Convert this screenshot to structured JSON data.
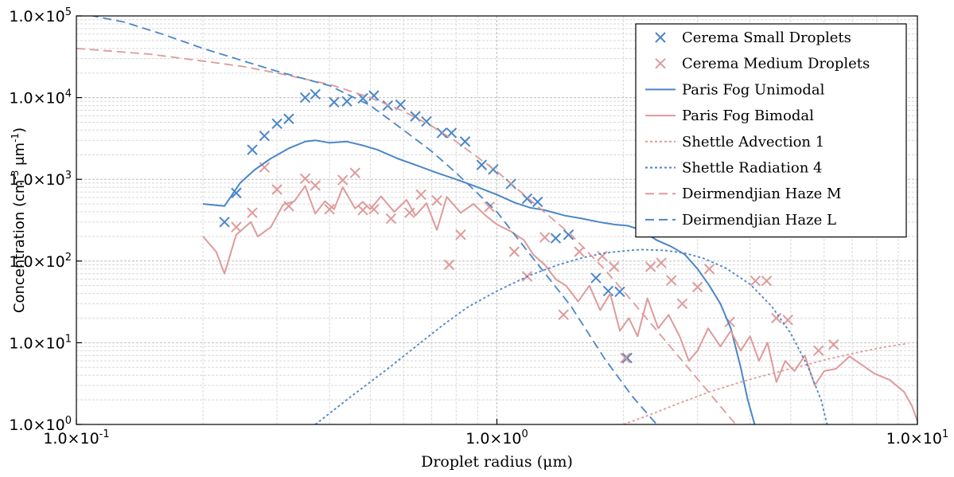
{
  "chart_data": {
    "type": "line",
    "xlabel": "Droplet radius (μm)",
    "ylabel_parts": [
      "Concentration (cm",
      "-3",
      " μm",
      "-1",
      ")"
    ],
    "x_scale": "log",
    "y_scale": "log",
    "xlim": [
      0.1,
      10
    ],
    "ylim": [
      1,
      100000
    ],
    "grid": true,
    "legend_position": "top-right",
    "x_ticks": [
      {
        "value": 0.1,
        "mantissa": "1.0×10",
        "exp": "-1"
      },
      {
        "value": 1,
        "mantissa": "1.0×10",
        "exp": "0"
      },
      {
        "value": 10,
        "mantissa": "1.0×10",
        "exp": "1"
      }
    ],
    "y_ticks": [
      {
        "value": 1,
        "mantissa": "1.0×10",
        "exp": "0"
      },
      {
        "value": 10,
        "mantissa": "1.0×10",
        "exp": "1"
      },
      {
        "value": 100,
        "mantissa": "1.0×10",
        "exp": "2"
      },
      {
        "value": 1000,
        "mantissa": "1.0×10",
        "exp": "3"
      },
      {
        "value": 10000,
        "mantissa": "1.0×10",
        "exp": "4"
      },
      {
        "value": 100000,
        "mantissa": "1.0×10",
        "exp": "5"
      }
    ],
    "colors": {
      "blue": "#4a86c8",
      "pink": "#df9a9a"
    },
    "series": [
      {
        "name": "Cerema Small Droplets",
        "kind": "marker",
        "color": "#4a86c8",
        "points": [
          [
            0.225,
            300
          ],
          [
            0.24,
            680
          ],
          [
            0.262,
            2300
          ],
          [
            0.28,
            3400
          ],
          [
            0.3,
            4800
          ],
          [
            0.32,
            5500
          ],
          [
            0.35,
            10000
          ],
          [
            0.37,
            11000
          ],
          [
            0.41,
            8800
          ],
          [
            0.44,
            9000
          ],
          [
            0.48,
            9800
          ],
          [
            0.51,
            10600
          ],
          [
            0.55,
            8000
          ],
          [
            0.59,
            8200
          ],
          [
            0.64,
            5900
          ],
          [
            0.68,
            5100
          ],
          [
            0.74,
            3700
          ],
          [
            0.78,
            3700
          ],
          [
            0.84,
            2900
          ],
          [
            0.92,
            1500
          ],
          [
            0.98,
            1320
          ],
          [
            1.08,
            880
          ],
          [
            1.18,
            580
          ],
          [
            1.25,
            530
          ],
          [
            1.38,
            190
          ],
          [
            1.48,
            210
          ],
          [
            1.72,
            62
          ],
          [
            1.84,
            43
          ],
          [
            1.96,
            42
          ],
          [
            2.04,
            6.5
          ]
        ]
      },
      {
        "name": "Cerema Medium Droplets",
        "kind": "marker",
        "color": "#df9a9a",
        "points": [
          [
            0.24,
            260
          ],
          [
            0.262,
            390
          ],
          [
            0.28,
            1400
          ],
          [
            0.3,
            750
          ],
          [
            0.32,
            470
          ],
          [
            0.35,
            1020
          ],
          [
            0.37,
            840
          ],
          [
            0.4,
            430
          ],
          [
            0.43,
            980
          ],
          [
            0.46,
            1200
          ],
          [
            0.48,
            420
          ],
          [
            0.51,
            430
          ],
          [
            0.56,
            330
          ],
          [
            0.62,
            390
          ],
          [
            0.66,
            650
          ],
          [
            0.72,
            550
          ],
          [
            0.77,
            90
          ],
          [
            0.82,
            210
          ],
          [
            0.96,
            460
          ],
          [
            1.1,
            130
          ],
          [
            1.18,
            65
          ],
          [
            1.3,
            195
          ],
          [
            1.44,
            22
          ],
          [
            1.57,
            130
          ],
          [
            1.78,
            115
          ],
          [
            1.9,
            85
          ],
          [
            2.02,
            6.5
          ],
          [
            2.32,
            85
          ],
          [
            2.46,
            95
          ],
          [
            2.6,
            58
          ],
          [
            2.76,
            30
          ],
          [
            3.0,
            48
          ],
          [
            3.2,
            80
          ],
          [
            3.58,
            18
          ],
          [
            4.12,
            57
          ],
          [
            4.38,
            57
          ],
          [
            4.62,
            20
          ],
          [
            4.92,
            19
          ],
          [
            5.82,
            8
          ],
          [
            6.32,
            9.5
          ]
        ]
      },
      {
        "name": "Paris Fog Unimodal",
        "kind": "solid",
        "color": "#4a86c8",
        "points": [
          [
            0.2,
            500
          ],
          [
            0.225,
            470
          ],
          [
            0.245,
            900
          ],
          [
            0.265,
            1300
          ],
          [
            0.29,
            1800
          ],
          [
            0.32,
            2400
          ],
          [
            0.35,
            2900
          ],
          [
            0.37,
            3000
          ],
          [
            0.4,
            2800
          ],
          [
            0.44,
            2900
          ],
          [
            0.48,
            2600
          ],
          [
            0.52,
            2300
          ],
          [
            0.58,
            1800
          ],
          [
            0.64,
            1500
          ],
          [
            0.72,
            1200
          ],
          [
            0.8,
            1000
          ],
          [
            0.9,
            800
          ],
          [
            1.0,
            650
          ],
          [
            1.1,
            520
          ],
          [
            1.2,
            450
          ],
          [
            1.3,
            420
          ],
          [
            1.45,
            360
          ],
          [
            1.6,
            330
          ],
          [
            1.75,
            300
          ],
          [
            1.9,
            280
          ],
          [
            2.05,
            270
          ],
          [
            2.2,
            240
          ],
          [
            2.4,
            180
          ],
          [
            2.6,
            150
          ],
          [
            2.8,
            120
          ],
          [
            3.0,
            80
          ],
          [
            3.2,
            50
          ],
          [
            3.4,
            30
          ],
          [
            3.6,
            15
          ],
          [
            3.8,
            5
          ],
          [
            3.95,
            2
          ],
          [
            4.1,
            1
          ]
        ]
      },
      {
        "name": "Paris Fog Bimodal",
        "kind": "solid",
        "color": "#df9a9a",
        "points": [
          [
            0.2,
            200
          ],
          [
            0.215,
            130
          ],
          [
            0.225,
            70
          ],
          [
            0.24,
            210
          ],
          [
            0.26,
            300
          ],
          [
            0.27,
            200
          ],
          [
            0.29,
            260
          ],
          [
            0.31,
            490
          ],
          [
            0.33,
            540
          ],
          [
            0.35,
            830
          ],
          [
            0.37,
            380
          ],
          [
            0.39,
            540
          ],
          [
            0.41,
            430
          ],
          [
            0.43,
            800
          ],
          [
            0.46,
            440
          ],
          [
            0.48,
            530
          ],
          [
            0.5,
            430
          ],
          [
            0.53,
            620
          ],
          [
            0.57,
            400
          ],
          [
            0.61,
            560
          ],
          [
            0.64,
            360
          ],
          [
            0.68,
            510
          ],
          [
            0.72,
            240
          ],
          [
            0.76,
            610
          ],
          [
            0.82,
            390
          ],
          [
            0.88,
            500
          ],
          [
            0.94,
            360
          ],
          [
            1.0,
            280
          ],
          [
            1.08,
            230
          ],
          [
            1.16,
            180
          ],
          [
            1.22,
            120
          ],
          [
            1.3,
            90
          ],
          [
            1.38,
            60
          ],
          [
            1.46,
            50
          ],
          [
            1.56,
            32
          ],
          [
            1.66,
            50
          ],
          [
            1.76,
            25
          ],
          [
            1.86,
            40
          ],
          [
            1.96,
            14
          ],
          [
            2.06,
            20
          ],
          [
            2.16,
            12
          ],
          [
            2.28,
            35
          ],
          [
            2.42,
            15
          ],
          [
            2.56,
            22
          ],
          [
            2.72,
            12
          ],
          [
            2.86,
            6
          ],
          [
            3.0,
            8
          ],
          [
            3.18,
            15
          ],
          [
            3.4,
            9
          ],
          [
            3.6,
            14
          ],
          [
            3.8,
            8
          ],
          [
            4.0,
            12
          ],
          [
            4.2,
            6
          ],
          [
            4.4,
            10
          ],
          [
            4.62,
            3.3
          ],
          [
            4.85,
            6
          ],
          [
            5.1,
            4.5
          ],
          [
            5.4,
            7
          ],
          [
            5.7,
            3
          ],
          [
            6.0,
            4.5
          ],
          [
            6.4,
            4.8
          ],
          [
            6.9,
            6.8
          ],
          [
            7.4,
            5.3
          ],
          [
            7.9,
            4.2
          ],
          [
            8.6,
            3.5
          ],
          [
            9.3,
            2.5
          ],
          [
            9.7,
            1.7
          ],
          [
            10.0,
            1.1
          ]
        ]
      },
      {
        "name": "Shettle Advection 1",
        "kind": "dotted",
        "color": "#df9a9a",
        "points": [
          [
            2.0,
            1.0
          ],
          [
            2.3,
            1.3
          ],
          [
            2.7,
            1.8
          ],
          [
            3.2,
            2.5
          ],
          [
            3.8,
            3.3
          ],
          [
            4.5,
            4.2
          ],
          [
            5.3,
            5.2
          ],
          [
            6.2,
            6.4
          ],
          [
            7.2,
            7.6
          ],
          [
            8.4,
            8.9
          ],
          [
            9.5,
            9.8
          ]
        ]
      },
      {
        "name": "Shettle Radiation 4",
        "kind": "dotted",
        "color": "#4a86c8",
        "points": [
          [
            0.37,
            1.0
          ],
          [
            0.45,
            2.2
          ],
          [
            0.55,
            4.8
          ],
          [
            0.65,
            9.5
          ],
          [
            0.75,
            17
          ],
          [
            0.85,
            27
          ],
          [
            1.0,
            43
          ],
          [
            1.2,
            67
          ],
          [
            1.4,
            90
          ],
          [
            1.6,
            110
          ],
          [
            1.8,
            125
          ],
          [
            2.0,
            133
          ],
          [
            2.2,
            138
          ],
          [
            2.5,
            135
          ],
          [
            2.8,
            125
          ],
          [
            3.1,
            108
          ],
          [
            3.5,
            82
          ],
          [
            4.0,
            52
          ],
          [
            4.5,
            28
          ],
          [
            5.0,
            13
          ],
          [
            5.5,
            5
          ],
          [
            5.9,
            2
          ],
          [
            6.1,
            1
          ]
        ]
      },
      {
        "name": "Deirmendjian Haze M",
        "kind": "dashed",
        "color": "#df9a9a",
        "points": [
          [
            0.1,
            40000
          ],
          [
            0.15,
            34000
          ],
          [
            0.2,
            28000
          ],
          [
            0.25,
            24000
          ],
          [
            0.3,
            20000
          ],
          [
            0.4,
            14500
          ],
          [
            0.5,
            10000
          ],
          [
            0.6,
            6800
          ],
          [
            0.7,
            4500
          ],
          [
            0.8,
            2900
          ],
          [
            1.0,
            1250
          ],
          [
            1.2,
            560
          ],
          [
            1.5,
            210
          ],
          [
            1.8,
            80
          ],
          [
            2.1,
            32
          ],
          [
            2.5,
            11
          ],
          [
            3.0,
            3.6
          ],
          [
            3.5,
            1.4
          ],
          [
            3.7,
            1.0
          ]
        ]
      },
      {
        "name": "Deirmendjian Haze L",
        "kind": "dashed",
        "color": "#4a86c8",
        "points": [
          [
            0.1,
            110000
          ],
          [
            0.13,
            84000
          ],
          [
            0.16,
            60000
          ],
          [
            0.2,
            40000
          ],
          [
            0.25,
            28000
          ],
          [
            0.3,
            21000
          ],
          [
            0.4,
            14000
          ],
          [
            0.5,
            8000
          ],
          [
            0.6,
            4000
          ],
          [
            0.7,
            2200
          ],
          [
            0.8,
            1200
          ],
          [
            1.0,
            400
          ],
          [
            1.2,
            120
          ],
          [
            1.5,
            28
          ],
          [
            1.8,
            6.5
          ],
          [
            2.1,
            2.2
          ],
          [
            2.4,
            1.0
          ]
        ]
      }
    ]
  }
}
